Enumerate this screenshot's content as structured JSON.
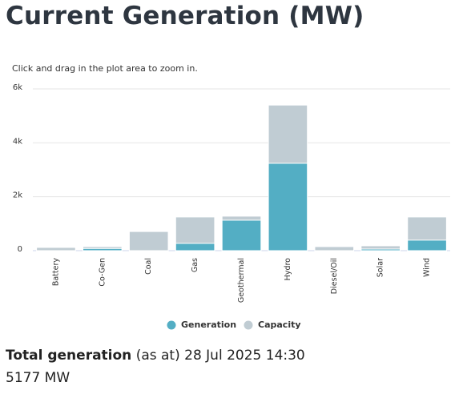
{
  "chart_data": {
    "type": "bar",
    "title": "Current Generation (MW)",
    "subtitle": "Click and drag in the plot area to zoom in.",
    "categories": [
      "Battery",
      "Co-Gen",
      "Coal",
      "Gas",
      "Geothermal",
      "Hydro",
      "Diesel/Oil",
      "Solar",
      "Wind"
    ],
    "series": [
      {
        "name": "Generation",
        "color": "#53aec4",
        "values": [
          0,
          80,
          0,
          270,
          1130,
          3240,
          0,
          60,
          390
        ]
      },
      {
        "name": "Capacity",
        "color": "#c0ccd3",
        "values": [
          120,
          150,
          710,
          1250,
          1280,
          5400,
          150,
          180,
          1250
        ]
      }
    ],
    "ylim": [
      0,
      6000
    ],
    "yticks": [
      0,
      {
        "value": 2000,
        "label": "2k"
      },
      {
        "value": 4000,
        "label": "4k"
      },
      {
        "value": 6000,
        "label": "6k"
      }
    ],
    "grid": true,
    "overlap": true,
    "legend": "bottom"
  },
  "footer": {
    "label": "Total generation",
    "note": "(as at) 28 Jul 2025 14:30",
    "total": "5177 MW"
  }
}
